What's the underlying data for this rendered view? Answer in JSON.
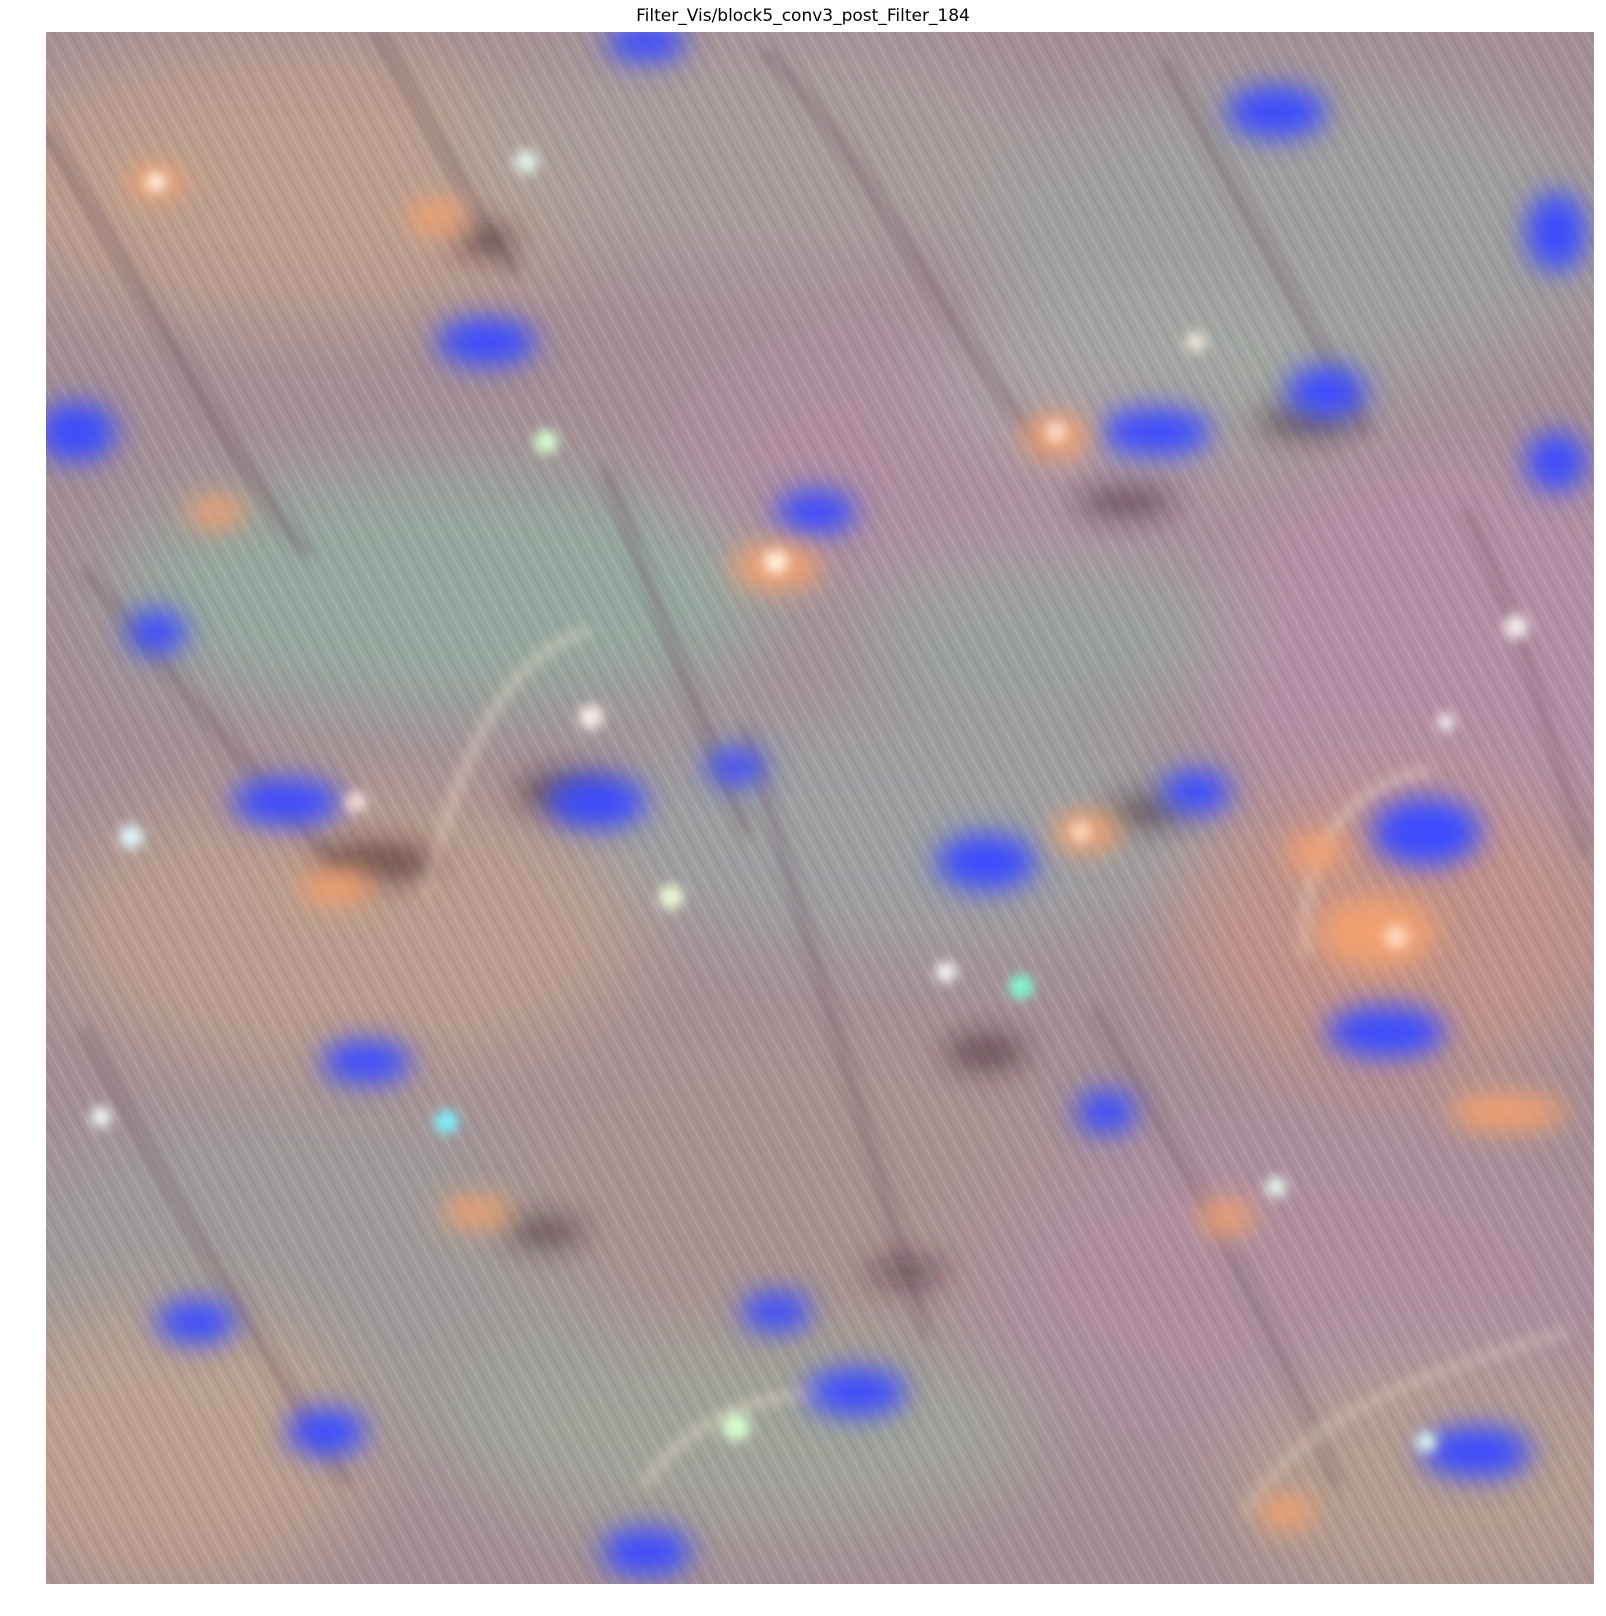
{
  "figure": {
    "title": "Filter_Vis/block5_conv3_post_Filter_184"
  },
  "image": {
    "content": "filter-visualization",
    "palette": {
      "base": "#a48e95",
      "mauve": "#b08fa3",
      "tan": "#c2a28c",
      "gray": "#9e9e9a",
      "teal": "#8fb3a4",
      "blue": "#3a4cff",
      "orange": "#f0a070",
      "pale_green": "#d6ffd0"
    }
  }
}
